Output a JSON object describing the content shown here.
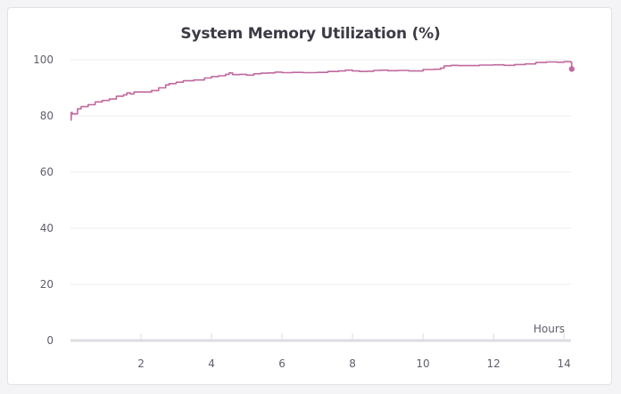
{
  "chart_data": {
    "type": "line",
    "title": "System Memory Utilization (%)",
    "xlabel": "Hours",
    "ylabel": "",
    "xlim": [
      0,
      14.2
    ],
    "ylim": [
      0,
      100
    ],
    "x_ticks": [
      2,
      4,
      6,
      8,
      10,
      12,
      14
    ],
    "y_ticks": [
      0,
      20,
      40,
      60,
      80,
      100
    ],
    "grid": true,
    "legend": "none",
    "colors": {
      "line": "#c0699f",
      "grid": "#ececf0",
      "axis": "#dcdce2"
    },
    "series": [
      {
        "name": "",
        "x": [
          0.0,
          0.02,
          0.05,
          0.2,
          0.3,
          0.5,
          0.7,
          0.9,
          1.1,
          1.3,
          1.5,
          1.6,
          1.7,
          1.8,
          2.0,
          2.3,
          2.5,
          2.7,
          2.8,
          3.0,
          3.2,
          3.5,
          3.8,
          4.0,
          4.2,
          4.4,
          4.5,
          4.6,
          4.8,
          5.0,
          5.2,
          5.4,
          5.6,
          5.8,
          6.0,
          6.3,
          6.6,
          7.0,
          7.3,
          7.6,
          7.8,
          8.0,
          8.2,
          8.4,
          8.6,
          8.8,
          9.0,
          9.3,
          9.6,
          10.0,
          10.3,
          10.5,
          10.6,
          10.8,
          11.0,
          11.3,
          11.6,
          12.0,
          12.3,
          12.6,
          12.9,
          13.2,
          13.5,
          13.8,
          14.0,
          14.2,
          14.22
        ],
        "values": [
          78.5,
          81.2,
          80.7,
          82.5,
          83.3,
          84.0,
          85.0,
          85.5,
          86.0,
          87.0,
          87.5,
          88.2,
          87.8,
          88.5,
          88.5,
          89.0,
          90.0,
          91.0,
          91.5,
          92.0,
          92.5,
          92.8,
          93.5,
          94.0,
          94.3,
          94.8,
          95.3,
          94.7,
          94.8,
          94.5,
          95.0,
          95.2,
          95.3,
          95.6,
          95.4,
          95.5,
          95.4,
          95.5,
          95.8,
          96.0,
          96.3,
          96.0,
          95.8,
          95.9,
          96.2,
          96.3,
          96.1,
          96.2,
          96.0,
          96.5,
          96.6,
          97.0,
          97.8,
          98.0,
          97.9,
          97.9,
          98.1,
          98.2,
          98.0,
          98.3,
          98.5,
          99.0,
          99.2,
          99.1,
          99.3,
          99.0,
          96.7
        ]
      }
    ]
  }
}
